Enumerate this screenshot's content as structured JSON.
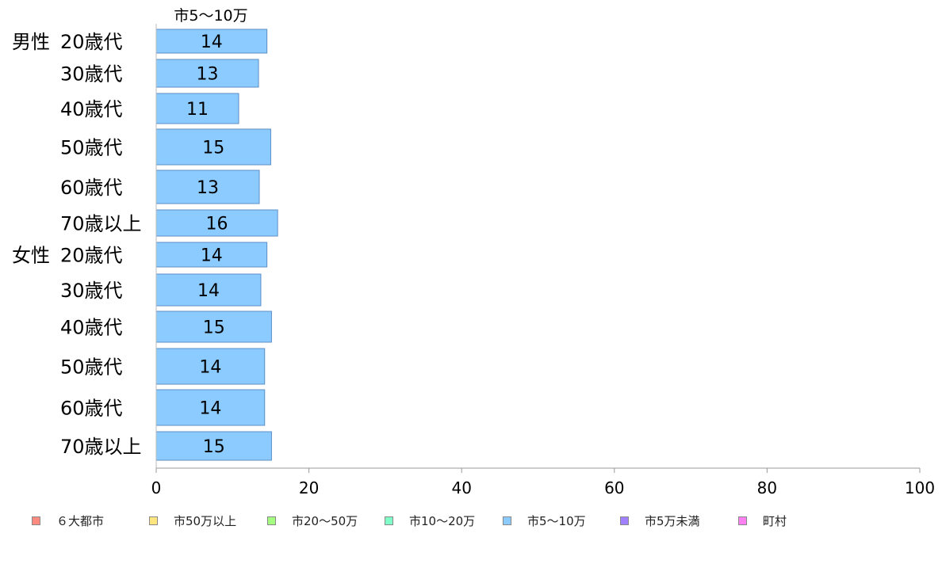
{
  "chart_data": {
    "type": "bar",
    "orientation": "horizontal",
    "series_label": "市5〜10万",
    "groups": [
      {
        "label": "男性",
        "start_index": 0
      },
      {
        "label": "女性",
        "start_index": 6
      }
    ],
    "categories": [
      "20歳代",
      "30歳代",
      "40歳代",
      "50歳代",
      "60歳代",
      "70歳以上",
      "20歳代",
      "30歳代",
      "40歳代",
      "50歳代",
      "60歳代",
      "70歳以上"
    ],
    "bar_values": [
      14.5,
      13.4,
      10.8,
      15.0,
      13.5,
      15.9,
      14.5,
      13.7,
      15.1,
      14.2,
      14.2,
      15.1
    ],
    "data_labels": [
      "14",
      "13",
      "11",
      "15",
      "13",
      "16",
      "14",
      "14",
      "15",
      "14",
      "14",
      "15"
    ],
    "xlim": [
      0,
      100
    ],
    "x_ticks": [
      0,
      20,
      40,
      60,
      80,
      100
    ],
    "bar_color": "#8ccbff",
    "bar_border": "#5b8fc7",
    "legend_placement": "bottom",
    "legend": [
      {
        "label": "６大都市",
        "color": "#ff8a80"
      },
      {
        "label": "市50万以上",
        "color": "#ffe680"
      },
      {
        "label": "市20〜50万",
        "color": "#a4ff80"
      },
      {
        "label": "市10〜20万",
        "color": "#80ffc8"
      },
      {
        "label": "市5〜10万",
        "color": "#8ccbff"
      },
      {
        "label": "市5万未満",
        "color": "#a080ff"
      },
      {
        "label": "町村",
        "color": "#ff80f0"
      }
    ]
  }
}
